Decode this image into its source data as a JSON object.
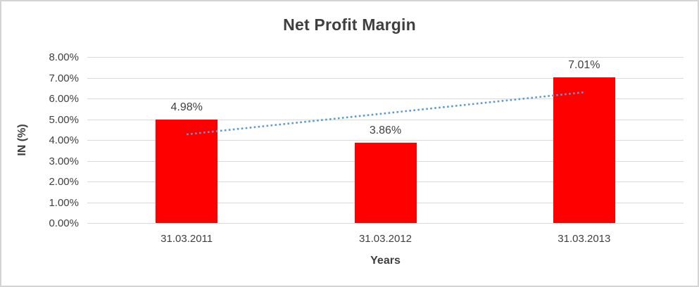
{
  "chart_data": {
    "type": "bar",
    "title": "Net Profit Margin",
    "xlabel": "Years",
    "ylabel": "IN (%)",
    "categories": [
      "31.03.2011",
      "31.03.2012",
      "31.03.2013"
    ],
    "values": [
      4.98,
      3.86,
      7.01
    ],
    "data_labels": [
      "4.98%",
      "3.86%",
      "7.01%"
    ],
    "ylim": [
      0,
      8
    ],
    "y_tick_step": 1,
    "y_tick_labels": [
      "8.00%",
      "7.00%",
      "6.00%",
      "5.00%",
      "4.00%",
      "3.00%",
      "2.00%",
      "1.00%",
      "0.00%"
    ],
    "grid": true,
    "legend": "none",
    "bar_color": "#ff0000",
    "gridline_color": "#d9d9d9",
    "text_color": "#404040",
    "trendline": {
      "type": "linear",
      "style": "dotted",
      "color": "#5b9bd5",
      "start_value": 4.27,
      "end_value": 6.3
    }
  }
}
